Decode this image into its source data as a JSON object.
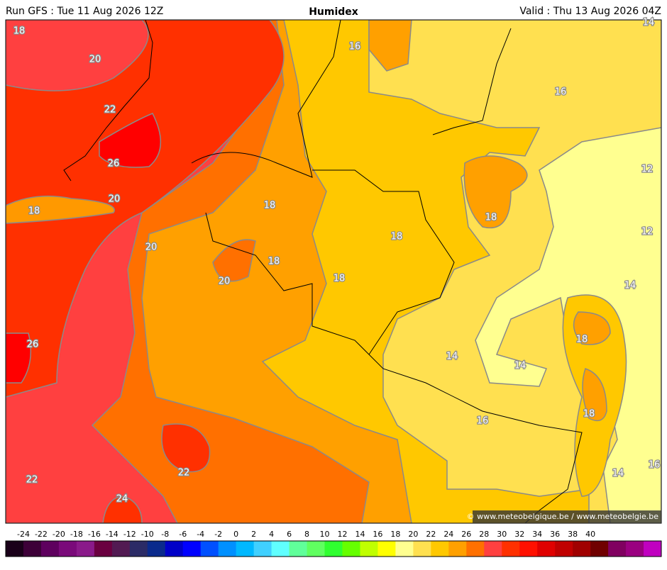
{
  "header": {
    "left": "Run GFS : Tue 11 Aug 2026 12Z",
    "title": "Humidex",
    "right": "Valid : Thu 13 Aug 2026 04Z"
  },
  "contour_labels": [
    18,
    20,
    22,
    26,
    20,
    18,
    20,
    18,
    18,
    20,
    18,
    18,
    18,
    16,
    16,
    14,
    12,
    12,
    14,
    18,
    14,
    14,
    18,
    16,
    16,
    14,
    26,
    22,
    22,
    24
  ],
  "credit": "© www.meteobelgique.be / www.meteobelgie.be",
  "scale": {
    "labels": [
      -24,
      -22,
      -20,
      -18,
      -16,
      -14,
      -12,
      -10,
      -8,
      -6,
      -4,
      -2,
      0,
      2,
      4,
      6,
      8,
      10,
      12,
      14,
      16,
      18,
      20,
      22,
      24,
      26,
      28,
      30,
      32,
      34,
      36,
      38,
      40
    ],
    "colors": [
      "#1a0019",
      "#3d0038",
      "#5e005e",
      "#7a0a7a",
      "#8a1a8a",
      "#6a0040",
      "#521a52",
      "#2b2b66",
      "#0a2a8c",
      "#0000c8",
      "#0000ff",
      "#0050ff",
      "#0090ff",
      "#00b8ff",
      "#40d0ff",
      "#60ffff",
      "#60ff9a",
      "#60ff60",
      "#30ff30",
      "#66ff00",
      "#c0ff00",
      "#ffff00",
      "#ffff90",
      "#ffe050",
      "#ffc800",
      "#ffa000",
      "#ff7000",
      "#ff4040",
      "#ff3000",
      "#ff1000",
      "#e00000",
      "#c00000",
      "#a00000",
      "#700000",
      "#800060",
      "#9a0080",
      "#c000c0"
    ]
  }
}
